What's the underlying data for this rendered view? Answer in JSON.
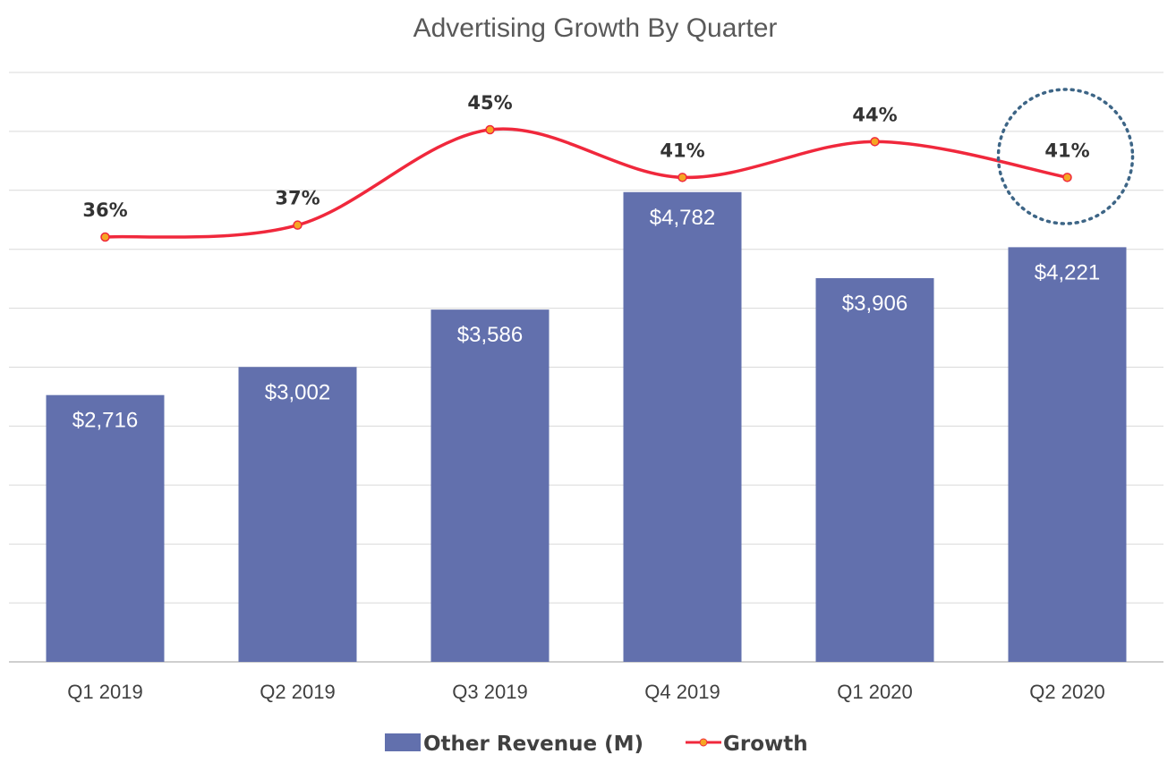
{
  "chart_data": {
    "type": "bar",
    "title": "Advertising Growth By Quarter",
    "categories": [
      "Q1 2019",
      "Q2 2019",
      "Q3 2019",
      "Q4 2019",
      "Q1 2020",
      "Q2 2020"
    ],
    "series": [
      {
        "name": "Other Revenue (M)",
        "type": "bar",
        "values": [
          2716,
          3002,
          3586,
          4782,
          3906,
          4221
        ],
        "labels": [
          "$2,716",
          "$3,002",
          "$3,586",
          "$4,782",
          "$3,906",
          "$4,221"
        ],
        "color": "#6270ad"
      },
      {
        "name": "Growth",
        "type": "line",
        "values": [
          36,
          37,
          45,
          41,
          44,
          41
        ],
        "labels": [
          "36%",
          "37%",
          "45%",
          "41%",
          "44%",
          "41%"
        ],
        "color": "#f0283c",
        "marker_color": "#f5a623"
      }
    ],
    "ylim": [
      0,
      6000
    ],
    "grid": true,
    "legend": "bottom",
    "annotation": {
      "type": "dotted-circle",
      "category": "Q2 2020",
      "color": "#3d6586"
    }
  }
}
